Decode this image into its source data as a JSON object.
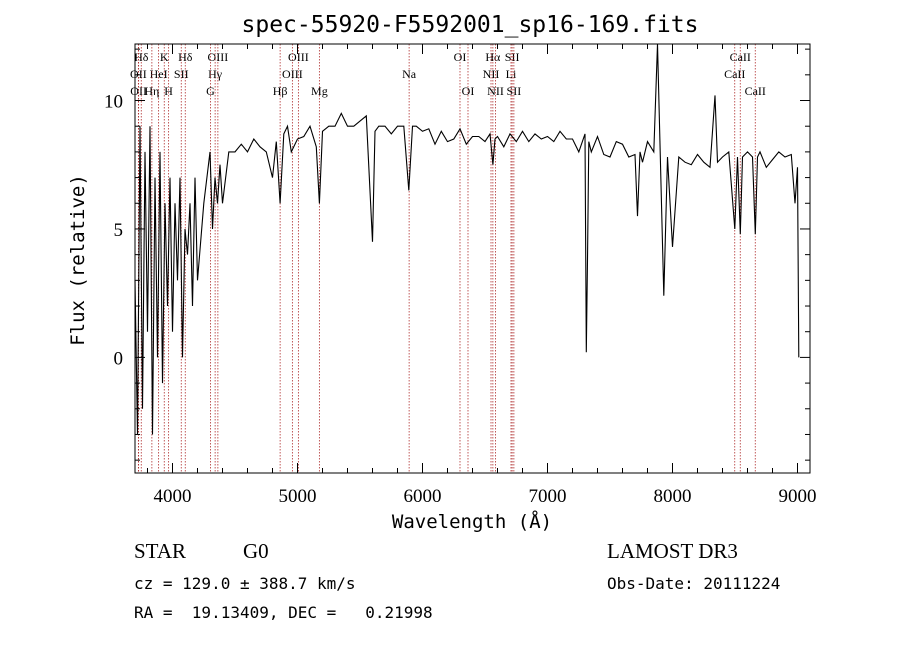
{
  "chart_data": {
    "type": "line",
    "title": "spec-55920-F5592001_sp16-169.fits",
    "xlabel": "Wavelength (Å)",
    "ylabel": "Flux (relative)",
    "xlim": [
      3700,
      9100
    ],
    "ylim": [
      -4.5,
      12.2
    ],
    "xticks": [
      4000,
      5000,
      6000,
      7000,
      8000,
      9000
    ],
    "yticks": [
      0,
      5,
      10
    ],
    "series": [
      {
        "name": "flux",
        "x": [
          3700,
          3720,
          3740,
          3760,
          3780,
          3800,
          3820,
          3840,
          3860,
          3880,
          3900,
          3920,
          3940,
          3960,
          3980,
          4000,
          4020,
          4040,
          4060,
          4080,
          4100,
          4120,
          4140,
          4160,
          4180,
          4200,
          4250,
          4300,
          4320,
          4340,
          4360,
          4380,
          4400,
          4450,
          4500,
          4550,
          4600,
          4650,
          4700,
          4750,
          4800,
          4830,
          4861,
          4890,
          4920,
          4950,
          5000,
          5050,
          5100,
          5150,
          5175,
          5200,
          5250,
          5300,
          5350,
          5400,
          5450,
          5500,
          5550,
          5600,
          5620,
          5650,
          5700,
          5750,
          5800,
          5850,
          5890,
          5920,
          5950,
          6000,
          6050,
          6100,
          6150,
          6200,
          6250,
          6300,
          6350,
          6400,
          6450,
          6500,
          6540,
          6563,
          6580,
          6600,
          6650,
          6700,
          6750,
          6800,
          6850,
          6900,
          6950,
          7000,
          7050,
          7100,
          7150,
          7200,
          7250,
          7300,
          7310,
          7320,
          7330,
          7350,
          7400,
          7450,
          7500,
          7550,
          7600,
          7650,
          7700,
          7720,
          7740,
          7760,
          7800,
          7850,
          7880,
          7900,
          7930,
          7960,
          8000,
          8050,
          8100,
          8150,
          8200,
          8250,
          8300,
          8340,
          8360,
          8400,
          8450,
          8498,
          8520,
          8542,
          8560,
          8600,
          8640,
          8662,
          8680,
          8700,
          8750,
          8800,
          8850,
          8900,
          8950,
          8980,
          9000,
          9010
        ],
        "y": [
          3,
          -3,
          9,
          -2,
          8,
          1,
          9,
          -3,
          7,
          0,
          8,
          -1,
          6,
          2,
          7,
          1,
          6,
          3,
          7,
          0,
          5,
          4,
          6,
          2,
          7,
          3,
          6,
          8,
          5,
          7,
          6,
          7.5,
          6,
          8,
          8,
          8.3,
          8,
          8.5,
          8.2,
          8,
          7,
          8.4,
          6,
          8.7,
          9,
          8,
          8.5,
          8.6,
          9,
          8.2,
          6,
          8.8,
          9,
          9,
          9.5,
          9,
          9,
          9.2,
          9.4,
          4.5,
          8.8,
          9,
          9,
          8.7,
          9,
          9,
          6.5,
          9,
          9,
          8.8,
          8.9,
          8.3,
          8.8,
          8.4,
          8.5,
          8.9,
          8.3,
          8.6,
          8.6,
          8.4,
          8.7,
          7.5,
          8.5,
          8.6,
          8.2,
          8.7,
          8.4,
          8.8,
          8.4,
          8.7,
          8.5,
          8.6,
          8.4,
          8.8,
          8.5,
          8.5,
          8.0,
          8.7,
          0.2,
          3.8,
          8.4,
          8.0,
          8.6,
          7.9,
          7.8,
          8.4,
          8.3,
          7.8,
          7.9,
          5.5,
          8.0,
          7.6,
          8.4,
          8.0,
          12.2,
          8.3,
          2.4,
          7.8,
          4.3,
          7.8,
          7.6,
          7.5,
          7.9,
          7.6,
          7.4,
          10.2,
          7.6,
          7.8,
          8.0,
          5.0,
          7.8,
          4.8,
          7.8,
          8.0,
          7.8,
          4.8,
          7.8,
          8.0,
          7.4,
          7.7,
          8.0,
          7.8,
          7.9,
          6.0,
          7.4,
          0
        ]
      }
    ],
    "line_ids": [
      {
        "label": "Hδ",
        "wl": 3750,
        "row": 1
      },
      {
        "label": "OII",
        "wl": 3727,
        "row": 2
      },
      {
        "label": "OII",
        "wl": 3729,
        "row": 3
      },
      {
        "label": "K",
        "wl": 3934,
        "row": 1
      },
      {
        "label": "HeI",
        "wl": 3889,
        "row": 2
      },
      {
        "label": "Hη",
        "wl": 3835,
        "row": 3
      },
      {
        "label": "Hδ",
        "wl": 4102,
        "row": 1
      },
      {
        "label": "SII",
        "wl": 4070,
        "row": 2
      },
      {
        "label": "H",
        "wl": 3969,
        "row": 3
      },
      {
        "label": "OIII",
        "wl": 4363,
        "row": 1
      },
      {
        "label": "Hγ",
        "wl": 4341,
        "row": 2
      },
      {
        "label": "G",
        "wl": 4304,
        "row": 3
      },
      {
        "label": "OIII",
        "wl": 5007,
        "row": 1
      },
      {
        "label": "OIII",
        "wl": 4959,
        "row": 2
      },
      {
        "label": "Hβ",
        "wl": 4861,
        "row": 3
      },
      {
        "label": "Mg",
        "wl": 5175,
        "row": 3
      },
      {
        "label": "Na",
        "wl": 5893,
        "row": 2
      },
      {
        "label": "OI",
        "wl": 6300,
        "row": 1
      },
      {
        "label": "OI",
        "wl": 6364,
        "row": 3
      },
      {
        "label": "Hα",
        "wl": 6563,
        "row": 1
      },
      {
        "label": "NII",
        "wl": 6548,
        "row": 2
      },
      {
        "label": "NII",
        "wl": 6584,
        "row": 3
      },
      {
        "label": "SII",
        "wl": 6717,
        "row": 1
      },
      {
        "label": "Li",
        "wl": 6708,
        "row": 2
      },
      {
        "label": "SII",
        "wl": 6731,
        "row": 3
      },
      {
        "label": "CaII",
        "wl": 8542,
        "row": 1
      },
      {
        "label": "CaII",
        "wl": 8498,
        "row": 2
      },
      {
        "label": "CaII",
        "wl": 8662,
        "row": 3
      }
    ]
  },
  "info": {
    "obj_class": "STAR",
    "subclass": "G0",
    "survey": "LAMOST DR3",
    "cz_text": "cz = 129.0 ± 388.7 km/s",
    "obs_date": "Obs-Date: 20111224",
    "radec_text": "RA =  19.13409, DEC =   0.21998"
  }
}
